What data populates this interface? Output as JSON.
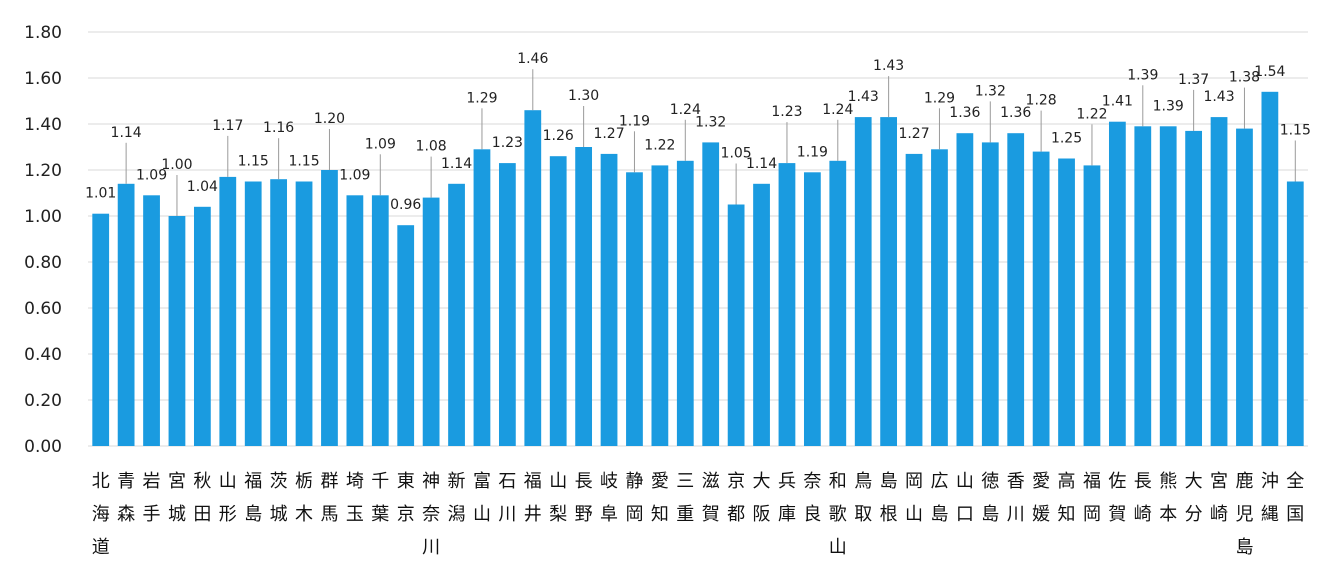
{
  "chart_data": {
    "type": "bar",
    "title": "",
    "xlabel": "",
    "ylabel": "",
    "ylim": [
      0,
      1.8
    ],
    "yticks": [
      "0.00",
      "0.20",
      "0.40",
      "0.60",
      "0.80",
      "1.00",
      "1.20",
      "1.40",
      "1.60",
      "1.80"
    ],
    "grid": true,
    "legend": "none",
    "bar_color": "#1a9be0",
    "categories": [
      "北海道",
      "青森",
      "岩手",
      "宮城",
      "秋田",
      "山形",
      "福島",
      "茨城",
      "栃木",
      "群馬",
      "埼玉",
      "千葉",
      "東京",
      "神奈川",
      "新潟",
      "富山",
      "石川",
      "福井",
      "山梨",
      "長野",
      "岐阜",
      "静岡",
      "愛知",
      "三重",
      "滋賀",
      "京都",
      "大阪",
      "兵庫",
      "奈良",
      "和歌山",
      "鳥取",
      "島根",
      "岡山",
      "広島",
      "山口",
      "徳島",
      "香川",
      "愛媛",
      "高知",
      "福岡",
      "佐賀",
      "長崎",
      "熊本",
      "大分",
      "宮崎",
      "鹿児島",
      "沖縄",
      "全国"
    ],
    "values": [
      1.01,
      1.14,
      1.09,
      1.0,
      1.04,
      1.17,
      1.15,
      1.16,
      1.15,
      1.2,
      1.09,
      1.09,
      0.96,
      1.08,
      1.14,
      1.29,
      1.23,
      1.46,
      1.26,
      1.3,
      1.27,
      1.19,
      1.22,
      1.24,
      1.32,
      1.05,
      1.14,
      1.23,
      1.19,
      1.24,
      1.43,
      1.43,
      1.27,
      1.29,
      1.36,
      1.32,
      1.36,
      1.28,
      1.25,
      1.22,
      1.41,
      1.39,
      1.39,
      1.37,
      1.43,
      1.38,
      1.54,
      1.15
    ],
    "data_labels": [
      "1.01",
      "1.14",
      "1.09",
      "1.00",
      "1.04",
      "1.17",
      "1.15",
      "1.16",
      "1.15",
      "1.20",
      "1.09",
      "1.09",
      "0.96",
      "1.08",
      "1.14",
      "1.29",
      "1.23",
      "1.46",
      "1.26",
      "1.30",
      "1.27",
      "1.19",
      "1.22",
      "1.24",
      "1.32",
      "1.05",
      "1.14",
      "1.23",
      "1.19",
      "1.24",
      "1.43",
      "1.43",
      "1.27",
      "1.29",
      "1.36",
      "1.32",
      "1.36",
      "1.28",
      "1.25",
      "1.22",
      "1.41",
      "1.39",
      "1.39",
      "1.37",
      "1.43",
      "1.38",
      "1.54",
      "1.15"
    ]
  }
}
